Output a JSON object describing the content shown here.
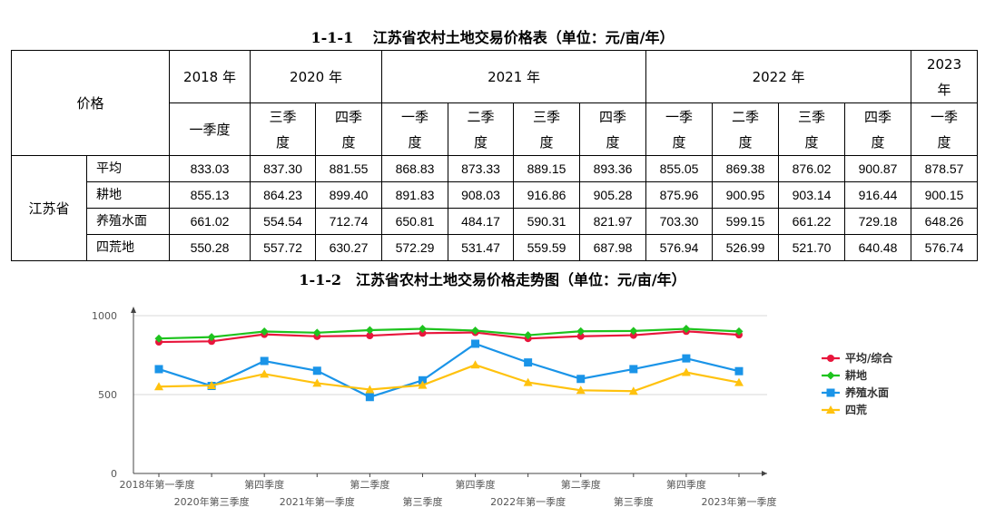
{
  "table": {
    "title": "1-1-1　 江苏省农村土地交易价格表（单位：元/亩/年）",
    "corner_label": "价格",
    "years": [
      {
        "label": "2018 年",
        "span": 1
      },
      {
        "label": "2020 年",
        "span": 2
      },
      {
        "label": "2021 年",
        "span": 4
      },
      {
        "label": "2022 年",
        "span": 4
      },
      {
        "label": "2023\n年",
        "span": 1
      }
    ],
    "quarters": [
      "一季度",
      "三季\n度",
      "四季\n度",
      "一季\n度",
      "二季\n度",
      "三季\n度",
      "四季\n度",
      "一季\n度",
      "二季\n度",
      "三季\n度",
      "四季\n度",
      "一季\n度"
    ],
    "region": "江苏省",
    "rows": [
      {
        "label": "平均",
        "values": [
          "833.03",
          "837.30",
          "881.55",
          "868.83",
          "873.33",
          "889.15",
          "893.36",
          "855.05",
          "869.38",
          "876.02",
          "900.87",
          "878.57"
        ]
      },
      {
        "label": "耕地",
        "values": [
          "855.13",
          "864.23",
          "899.40",
          "891.83",
          "908.03",
          "916.86",
          "905.28",
          "875.96",
          "900.95",
          "903.14",
          "916.44",
          "900.15"
        ]
      },
      {
        "label": "养殖水面",
        "values": [
          "661.02",
          "554.54",
          "712.74",
          "650.81",
          "484.17",
          "590.31",
          "821.97",
          "703.30",
          "599.15",
          "661.22",
          "729.18",
          "648.26"
        ]
      },
      {
        "label": "四荒地",
        "values": [
          "550.28",
          "557.72",
          "630.27",
          "572.29",
          "531.47",
          "559.59",
          "687.98",
          "576.94",
          "526.99",
          "521.70",
          "640.48",
          "576.74"
        ]
      }
    ]
  },
  "chart_title": "1-1-2　江苏省农村土地交易价格走势图（单位：元/亩/年）",
  "chart_data": {
    "type": "line",
    "title": "1-1-2　江苏省农村土地交易价格走势图（单位：元/亩/年）",
    "categories": [
      "2018年第一季度",
      "2020年第三季度",
      "第四季度",
      "2021年第一季度",
      "第二季度",
      "第三季度",
      "第四季度",
      "2022年第一季度",
      "第二季度",
      "第三季度",
      "第四季度",
      "2023年第一季度"
    ],
    "ylim": [
      0,
      1000
    ],
    "yticks": [
      "0",
      "500",
      "1000"
    ],
    "grid": true,
    "legend_position": "right",
    "series": [
      {
        "name": "平均/综合",
        "color": "#e8163c",
        "marker": "circle",
        "values": [
          833.03,
          837.3,
          881.55,
          868.83,
          873.33,
          889.15,
          893.36,
          855.05,
          869.38,
          876.02,
          900.87,
          878.57
        ]
      },
      {
        "name": "耕地",
        "color": "#1ec31e",
        "marker": "diamond",
        "values": [
          855.13,
          864.23,
          899.4,
          891.83,
          908.03,
          916.86,
          905.28,
          875.96,
          900.95,
          903.14,
          916.44,
          900.15
        ]
      },
      {
        "name": "养殖水面",
        "color": "#1a94e8",
        "marker": "square",
        "values": [
          661.02,
          554.54,
          712.74,
          650.81,
          484.17,
          590.31,
          821.97,
          703.3,
          599.15,
          661.22,
          729.18,
          648.26
        ]
      },
      {
        "name": "四荒",
        "color": "#ffc20e",
        "marker": "triangle",
        "values": [
          550.28,
          557.72,
          630.27,
          572.29,
          531.47,
          559.59,
          687.98,
          576.94,
          526.99,
          521.7,
          640.48,
          576.74
        ]
      }
    ]
  }
}
